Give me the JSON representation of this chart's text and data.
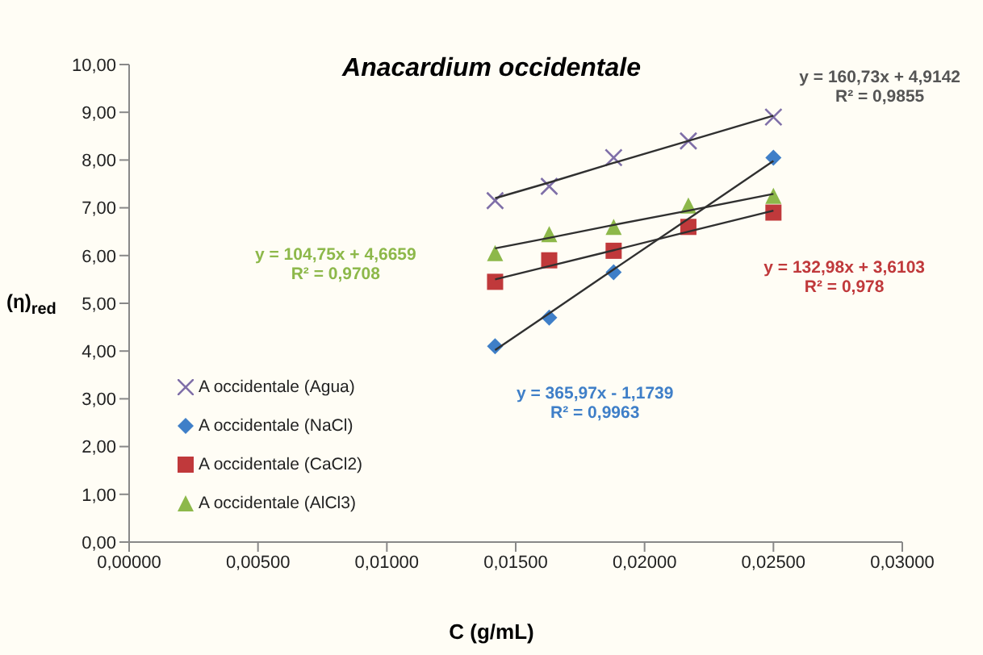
{
  "chart_data": {
    "type": "scatter",
    "title": "Anacardium occidentale",
    "xlabel": "C (g/mL)",
    "ylabel": "(η)$_{red}$",
    "x": [
      0.0142,
      0.0163,
      0.0188,
      0.0217,
      0.025
    ],
    "series": [
      {
        "name": "A occidentale (Agua)",
        "color": "#7f6fa8",
        "marker": "cross",
        "values": [
          7.15,
          7.45,
          8.05,
          8.4,
          8.9
        ]
      },
      {
        "name": "A occidentale (NaCl)",
        "color": "#3f7fc8",
        "marker": "diamond",
        "values": [
          4.1,
          4.7,
          5.65,
          null,
          8.05
        ]
      },
      {
        "name": "A occidentale (CaCl2)",
        "color": "#c0393b",
        "marker": "square",
        "values": [
          5.45,
          5.9,
          6.1,
          6.6,
          6.9
        ]
      },
      {
        "name": "A occidentale (AlCl3)",
        "color": "#8db84a",
        "marker": "triangle",
        "values": [
          6.05,
          6.45,
          6.6,
          7.05,
          7.25
        ]
      },
      {
        "type": "line",
        "color": "#303030",
        "values": [
          7.2,
          7.53,
          7.94,
          8.4,
          8.93
        ]
      },
      {
        "type": "line",
        "color": "#303030",
        "values": [
          4.02,
          4.79,
          5.71,
          6.77,
          7.98
        ]
      },
      {
        "type": "line",
        "color": "#303030",
        "values": [
          5.5,
          5.78,
          6.11,
          6.5,
          6.94
        ]
      },
      {
        "type": "line",
        "color": "#303030",
        "values": [
          6.15,
          6.37,
          6.64,
          6.94,
          7.29
        ]
      }
    ],
    "annotations": [
      "y = 160,73x + 4,9142\nR² = 0,9855",
      "y = 365,97x - 1,1739\nR² = 0,9963",
      "y = 132,98x + 3,6103\nR² = 0,978",
      "y = 104,75x + 4,6659\nR² = 0,9708"
    ],
    "xlim": [
      0,
      0.03
    ],
    "xticks": [
      {
        "value": 0,
        "label": "0,00000"
      },
      {
        "value": 0.005,
        "label": "0,00500"
      },
      {
        "value": 0.01,
        "label": "0,01000"
      },
      {
        "value": 0.015,
        "label": "0,01500"
      },
      {
        "value": 0.02,
        "label": "0,02000"
      },
      {
        "value": 0.025,
        "label": "0,02500"
      },
      {
        "value": 0.03,
        "label": "0,03000"
      }
    ],
    "ylim": [
      0,
      10
    ],
    "yticks": [
      {
        "value": 0,
        "label": "0,00"
      },
      {
        "value": 1,
        "label": "1,00"
      },
      {
        "value": 2,
        "label": "2,00"
      },
      {
        "value": 3,
        "label": "3,00"
      },
      {
        "value": 4,
        "label": "4,00"
      },
      {
        "value": 5,
        "label": "5,00"
      },
      {
        "value": 6,
        "label": "6,00"
      },
      {
        "value": 7,
        "label": "7,00"
      },
      {
        "value": 8,
        "label": "8,00"
      },
      {
        "value": 9,
        "label": "9,00"
      },
      {
        "value": 10,
        "label": "10,00"
      }
    ],
    "legend": "left",
    "grid": false
  }
}
